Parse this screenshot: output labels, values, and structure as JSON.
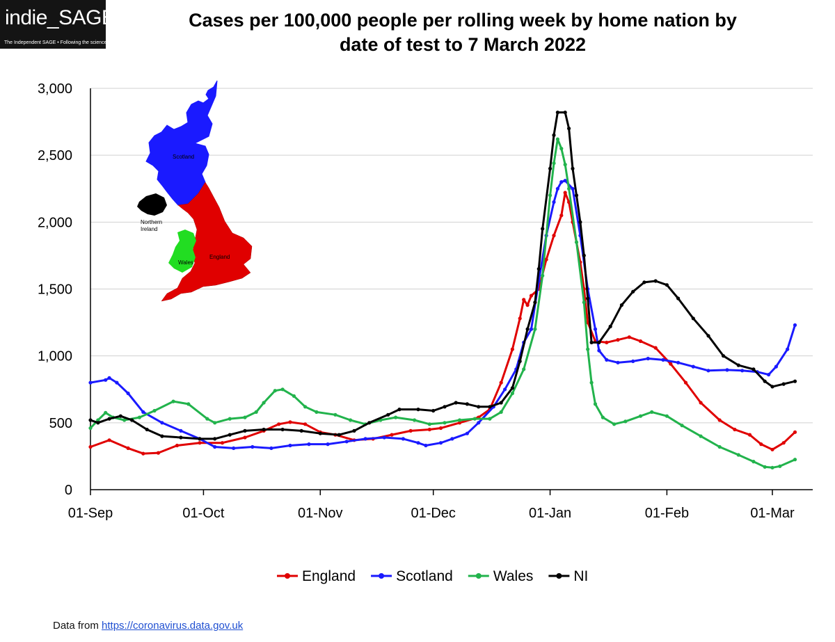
{
  "logo": {
    "text": "indie_SAGE",
    "tagline": "The Independent SAGE • Following the science"
  },
  "footer": {
    "prefix": "Data from ",
    "link_text": "https://coronavirus.data.gov.uk"
  },
  "map": {
    "labels": {
      "scotland": "Scotland",
      "northern_ireland_1": "Northern",
      "northern_ireland_2": "Ireland",
      "wales": "Wales",
      "england": "England"
    },
    "colors": {
      "scotland": "#1a1aff",
      "northern_ireland": "#000000",
      "wales": "#22dd22",
      "england": "#e00000"
    }
  },
  "chart_data": {
    "type": "line",
    "title": [
      "Cases per 100,000 people per rolling week by home nation by",
      "date of test to 7 March 2022"
    ],
    "xlabel": "",
    "ylabel": "",
    "ylim": [
      0,
      3000
    ],
    "yticks": [
      0,
      500,
      1000,
      1500,
      2000,
      2500,
      3000
    ],
    "ytick_labels": [
      "0",
      "500",
      "1,000",
      "1,500",
      "2,000",
      "2,500",
      "3,000"
    ],
    "x_start": "2021-09-01",
    "x_end": "2022-03-07",
    "xticks": [
      "2021-09-01",
      "2021-10-01",
      "2021-11-01",
      "2021-12-01",
      "2022-01-01",
      "2022-02-01",
      "2022-03-01"
    ],
    "xtick_labels": [
      "01-Sep",
      "01-Oct",
      "01-Nov",
      "01-Dec",
      "01-Jan",
      "01-Feb",
      "01-Mar"
    ],
    "grid": "horizontal",
    "legend": "bottom",
    "series": [
      {
        "name": "England",
        "color": "#e00000",
        "points": [
          [
            "2021-09-01",
            320
          ],
          [
            "2021-09-06",
            370
          ],
          [
            "2021-09-11",
            310
          ],
          [
            "2021-09-15",
            270
          ],
          [
            "2021-09-19",
            275
          ],
          [
            "2021-09-24",
            330
          ],
          [
            "2021-09-30",
            350
          ],
          [
            "2021-10-06",
            350
          ],
          [
            "2021-10-12",
            390
          ],
          [
            "2021-10-17",
            440
          ],
          [
            "2021-10-21",
            490
          ],
          [
            "2021-10-24",
            505
          ],
          [
            "2021-10-28",
            490
          ],
          [
            "2021-11-01",
            430
          ],
          [
            "2021-11-05",
            410
          ],
          [
            "2021-11-10",
            370
          ],
          [
            "2021-11-15",
            380
          ],
          [
            "2021-11-20",
            410
          ],
          [
            "2021-11-25",
            440
          ],
          [
            "2021-11-30",
            450
          ],
          [
            "2021-12-03",
            460
          ],
          [
            "2021-12-08",
            500
          ],
          [
            "2021-12-13",
            540
          ],
          [
            "2021-12-16",
            600
          ],
          [
            "2021-12-19",
            800
          ],
          [
            "2021-12-22",
            1050
          ],
          [
            "2021-12-24",
            1280
          ],
          [
            "2021-12-25",
            1420
          ],
          [
            "2021-12-26",
            1380
          ],
          [
            "2021-12-27",
            1450
          ],
          [
            "2021-12-29",
            1500
          ],
          [
            "2021-12-31",
            1720
          ],
          [
            "2022-01-02",
            1900
          ],
          [
            "2022-01-04",
            2050
          ],
          [
            "2022-01-05",
            2220
          ],
          [
            "2022-01-06",
            2150
          ],
          [
            "2022-01-07",
            2000
          ],
          [
            "2022-01-09",
            1700
          ],
          [
            "2022-01-10",
            1500
          ],
          [
            "2022-01-11",
            1250
          ],
          [
            "2022-01-13",
            1110
          ],
          [
            "2022-01-16",
            1100
          ],
          [
            "2022-01-19",
            1120
          ],
          [
            "2022-01-22",
            1140
          ],
          [
            "2022-01-25",
            1110
          ],
          [
            "2022-01-29",
            1060
          ],
          [
            "2022-02-02",
            940
          ],
          [
            "2022-02-06",
            800
          ],
          [
            "2022-02-10",
            650
          ],
          [
            "2022-02-15",
            520
          ],
          [
            "2022-02-19",
            450
          ],
          [
            "2022-02-23",
            410
          ],
          [
            "2022-02-26",
            340
          ],
          [
            "2022-03-01",
            300
          ],
          [
            "2022-03-04",
            350
          ],
          [
            "2022-03-07",
            430
          ]
        ]
      },
      {
        "name": "Scotland",
        "color": "#1a1aff",
        "points": [
          [
            "2021-09-01",
            800
          ],
          [
            "2021-09-05",
            820
          ],
          [
            "2021-09-06",
            835
          ],
          [
            "2021-09-08",
            800
          ],
          [
            "2021-09-11",
            720
          ],
          [
            "2021-09-15",
            580
          ],
          [
            "2021-09-20",
            500
          ],
          [
            "2021-09-25",
            440
          ],
          [
            "2021-09-30",
            380
          ],
          [
            "2021-10-04",
            320
          ],
          [
            "2021-10-09",
            310
          ],
          [
            "2021-10-14",
            320
          ],
          [
            "2021-10-19",
            310
          ],
          [
            "2021-10-24",
            330
          ],
          [
            "2021-10-29",
            340
          ],
          [
            "2021-11-03",
            340
          ],
          [
            "2021-11-08",
            360
          ],
          [
            "2021-11-13",
            380
          ],
          [
            "2021-11-18",
            390
          ],
          [
            "2021-11-23",
            380
          ],
          [
            "2021-11-27",
            350
          ],
          [
            "2021-11-29",
            330
          ],
          [
            "2021-12-03",
            350
          ],
          [
            "2021-12-06",
            380
          ],
          [
            "2021-12-10",
            420
          ],
          [
            "2021-12-13",
            500
          ],
          [
            "2021-12-17",
            620
          ],
          [
            "2021-12-20",
            750
          ],
          [
            "2021-12-23",
            900
          ],
          [
            "2021-12-25",
            1100
          ],
          [
            "2021-12-27",
            1200
          ],
          [
            "2021-12-29",
            1560
          ],
          [
            "2021-12-31",
            1900
          ],
          [
            "2022-01-02",
            2150
          ],
          [
            "2022-01-03",
            2250
          ],
          [
            "2022-01-04",
            2300
          ],
          [
            "2022-01-05",
            2310
          ],
          [
            "2022-01-07",
            2250
          ],
          [
            "2022-01-09",
            1900
          ],
          [
            "2022-01-11",
            1500
          ],
          [
            "2022-01-13",
            1200
          ],
          [
            "2022-01-14",
            1040
          ],
          [
            "2022-01-16",
            970
          ],
          [
            "2022-01-19",
            950
          ],
          [
            "2022-01-23",
            960
          ],
          [
            "2022-01-27",
            980
          ],
          [
            "2022-01-31",
            970
          ],
          [
            "2022-02-04",
            950
          ],
          [
            "2022-02-08",
            920
          ],
          [
            "2022-02-12",
            890
          ],
          [
            "2022-02-17",
            895
          ],
          [
            "2022-02-21",
            890
          ],
          [
            "2022-02-25",
            880
          ],
          [
            "2022-02-28",
            860
          ],
          [
            "2022-03-02",
            920
          ],
          [
            "2022-03-05",
            1050
          ],
          [
            "2022-03-07",
            1230
          ]
        ]
      },
      {
        "name": "Wales",
        "color": "#22b34c",
        "points": [
          [
            "2021-09-01",
            460
          ],
          [
            "2021-09-03",
            520
          ],
          [
            "2021-09-05",
            575
          ],
          [
            "2021-09-07",
            540
          ],
          [
            "2021-09-10",
            520
          ],
          [
            "2021-09-14",
            540
          ],
          [
            "2021-09-18",
            590
          ],
          [
            "2021-09-23",
            660
          ],
          [
            "2021-09-27",
            640
          ],
          [
            "2021-10-02",
            530
          ],
          [
            "2021-10-04",
            500
          ],
          [
            "2021-10-08",
            530
          ],
          [
            "2021-10-12",
            540
          ],
          [
            "2021-10-15",
            580
          ],
          [
            "2021-10-17",
            650
          ],
          [
            "2021-10-20",
            740
          ],
          [
            "2021-10-22",
            750
          ],
          [
            "2021-10-25",
            700
          ],
          [
            "2021-10-28",
            620
          ],
          [
            "2021-10-31",
            580
          ],
          [
            "2021-11-05",
            560
          ],
          [
            "2021-11-09",
            520
          ],
          [
            "2021-11-13",
            490
          ],
          [
            "2021-11-17",
            520
          ],
          [
            "2021-11-21",
            540
          ],
          [
            "2021-11-26",
            520
          ],
          [
            "2021-11-30",
            490
          ],
          [
            "2021-12-04",
            500
          ],
          [
            "2021-12-08",
            520
          ],
          [
            "2021-12-12",
            530
          ],
          [
            "2021-12-16",
            530
          ],
          [
            "2021-12-19",
            580
          ],
          [
            "2021-12-22",
            720
          ],
          [
            "2021-12-25",
            900
          ],
          [
            "2021-12-28",
            1200
          ],
          [
            "2021-12-30",
            1600
          ],
          [
            "2022-01-01",
            2200
          ],
          [
            "2022-01-02",
            2440
          ],
          [
            "2022-01-03",
            2620
          ],
          [
            "2022-01-04",
            2550
          ],
          [
            "2022-01-05",
            2430
          ],
          [
            "2022-01-06",
            2250
          ],
          [
            "2022-01-08",
            1850
          ],
          [
            "2022-01-10",
            1400
          ],
          [
            "2022-01-11",
            1050
          ],
          [
            "2022-01-12",
            800
          ],
          [
            "2022-01-13",
            640
          ],
          [
            "2022-01-15",
            540
          ],
          [
            "2022-01-18",
            490
          ],
          [
            "2022-01-21",
            510
          ],
          [
            "2022-01-25",
            550
          ],
          [
            "2022-01-28",
            580
          ],
          [
            "2022-02-01",
            550
          ],
          [
            "2022-02-05",
            480
          ],
          [
            "2022-02-10",
            400
          ],
          [
            "2022-02-15",
            320
          ],
          [
            "2022-02-20",
            260
          ],
          [
            "2022-02-24",
            210
          ],
          [
            "2022-02-27",
            170
          ],
          [
            "2022-03-01",
            165
          ],
          [
            "2022-03-03",
            175
          ],
          [
            "2022-03-07",
            225
          ]
        ]
      },
      {
        "name": "NI",
        "color": "#000000",
        "points": [
          [
            "2021-09-01",
            520
          ],
          [
            "2021-09-03",
            500
          ],
          [
            "2021-09-06",
            530
          ],
          [
            "2021-09-09",
            550
          ],
          [
            "2021-09-12",
            520
          ],
          [
            "2021-09-16",
            450
          ],
          [
            "2021-09-20",
            400
          ],
          [
            "2021-09-25",
            390
          ],
          [
            "2021-09-30",
            380
          ],
          [
            "2021-10-04",
            380
          ],
          [
            "2021-10-08",
            410
          ],
          [
            "2021-10-12",
            440
          ],
          [
            "2021-10-17",
            450
          ],
          [
            "2021-10-22",
            450
          ],
          [
            "2021-10-27",
            440
          ],
          [
            "2021-11-01",
            420
          ],
          [
            "2021-11-06",
            410
          ],
          [
            "2021-11-10",
            440
          ],
          [
            "2021-11-14",
            500
          ],
          [
            "2021-11-19",
            560
          ],
          [
            "2021-11-22",
            600
          ],
          [
            "2021-11-27",
            600
          ],
          [
            "2021-12-01",
            590
          ],
          [
            "2021-12-04",
            620
          ],
          [
            "2021-12-07",
            650
          ],
          [
            "2021-12-10",
            640
          ],
          [
            "2021-12-13",
            620
          ],
          [
            "2021-12-16",
            620
          ],
          [
            "2021-12-19",
            650
          ],
          [
            "2021-12-22",
            760
          ],
          [
            "2021-12-24",
            960
          ],
          [
            "2021-12-26",
            1200
          ],
          [
            "2021-12-28",
            1400
          ],
          [
            "2021-12-29",
            1650
          ],
          [
            "2021-12-30",
            1950
          ],
          [
            "2022-01-01",
            2400
          ],
          [
            "2022-01-02",
            2650
          ],
          [
            "2022-01-03",
            2820
          ],
          [
            "2022-01-05",
            2820
          ],
          [
            "2022-01-06",
            2700
          ],
          [
            "2022-01-07",
            2400
          ],
          [
            "2022-01-08",
            2200
          ],
          [
            "2022-01-09",
            2000
          ],
          [
            "2022-01-10",
            1750
          ],
          [
            "2022-01-11",
            1430
          ],
          [
            "2022-01-12",
            1100
          ],
          [
            "2022-01-14",
            1100
          ],
          [
            "2022-01-17",
            1220
          ],
          [
            "2022-01-20",
            1380
          ],
          [
            "2022-01-23",
            1480
          ],
          [
            "2022-01-26",
            1550
          ],
          [
            "2022-01-29",
            1560
          ],
          [
            "2022-02-01",
            1530
          ],
          [
            "2022-02-04",
            1430
          ],
          [
            "2022-02-08",
            1280
          ],
          [
            "2022-02-12",
            1150
          ],
          [
            "2022-02-16",
            1000
          ],
          [
            "2022-02-20",
            930
          ],
          [
            "2022-02-24",
            900
          ],
          [
            "2022-02-27",
            810
          ],
          [
            "2022-03-01",
            770
          ],
          [
            "2022-03-04",
            790
          ],
          [
            "2022-03-07",
            810
          ]
        ]
      }
    ]
  }
}
